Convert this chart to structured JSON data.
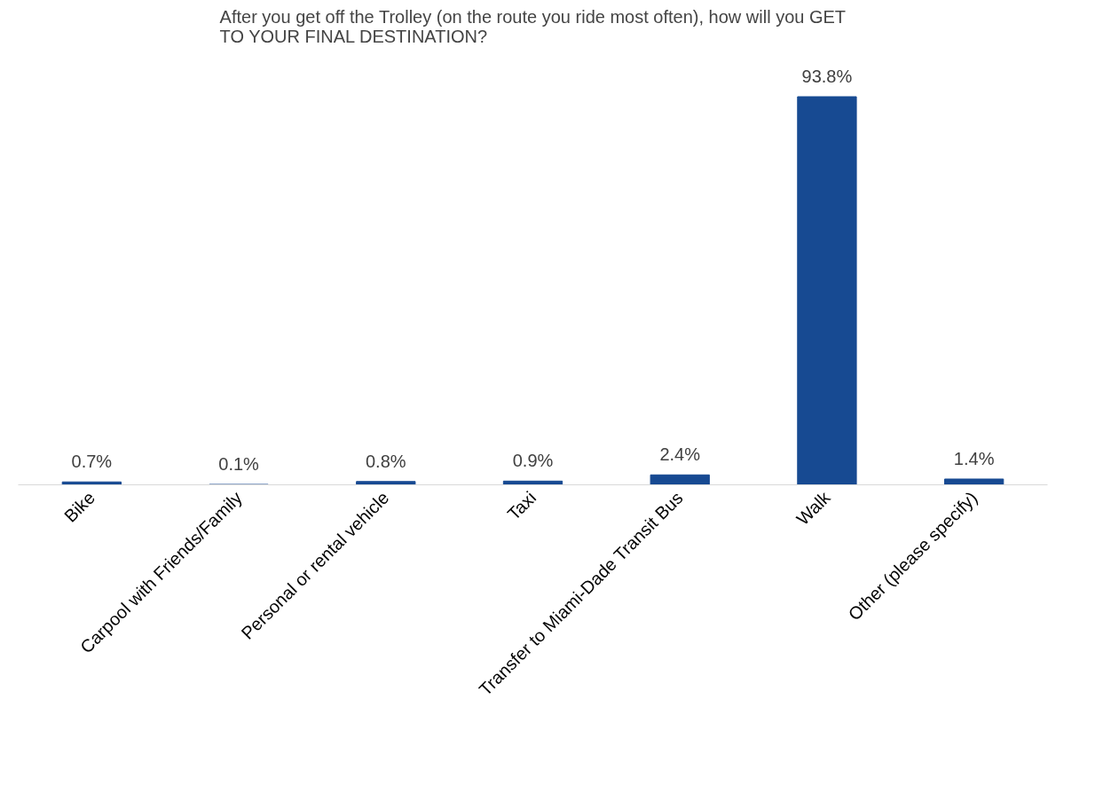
{
  "chart_data": {
    "type": "bar",
    "title": "After you get off the Trolley (on the route you ride most often), how will you GET TO YOUR FINAL DESTINATION?",
    "categories": [
      "Bike",
      "Carpool with Friends/Family",
      "Personal or rental vehicle",
      "Taxi",
      "Transfer to Miami-Dade Transit Bus",
      "Walk",
      "Other (please specify)"
    ],
    "values": [
      0.7,
      0.1,
      0.8,
      0.9,
      2.4,
      93.8,
      1.4
    ],
    "value_labels": [
      "0.7%",
      "0.1%",
      "0.8%",
      "0.9%",
      "2.4%",
      "93.8%",
      "1.4%"
    ],
    "color": "#174a92",
    "grid": false
  }
}
